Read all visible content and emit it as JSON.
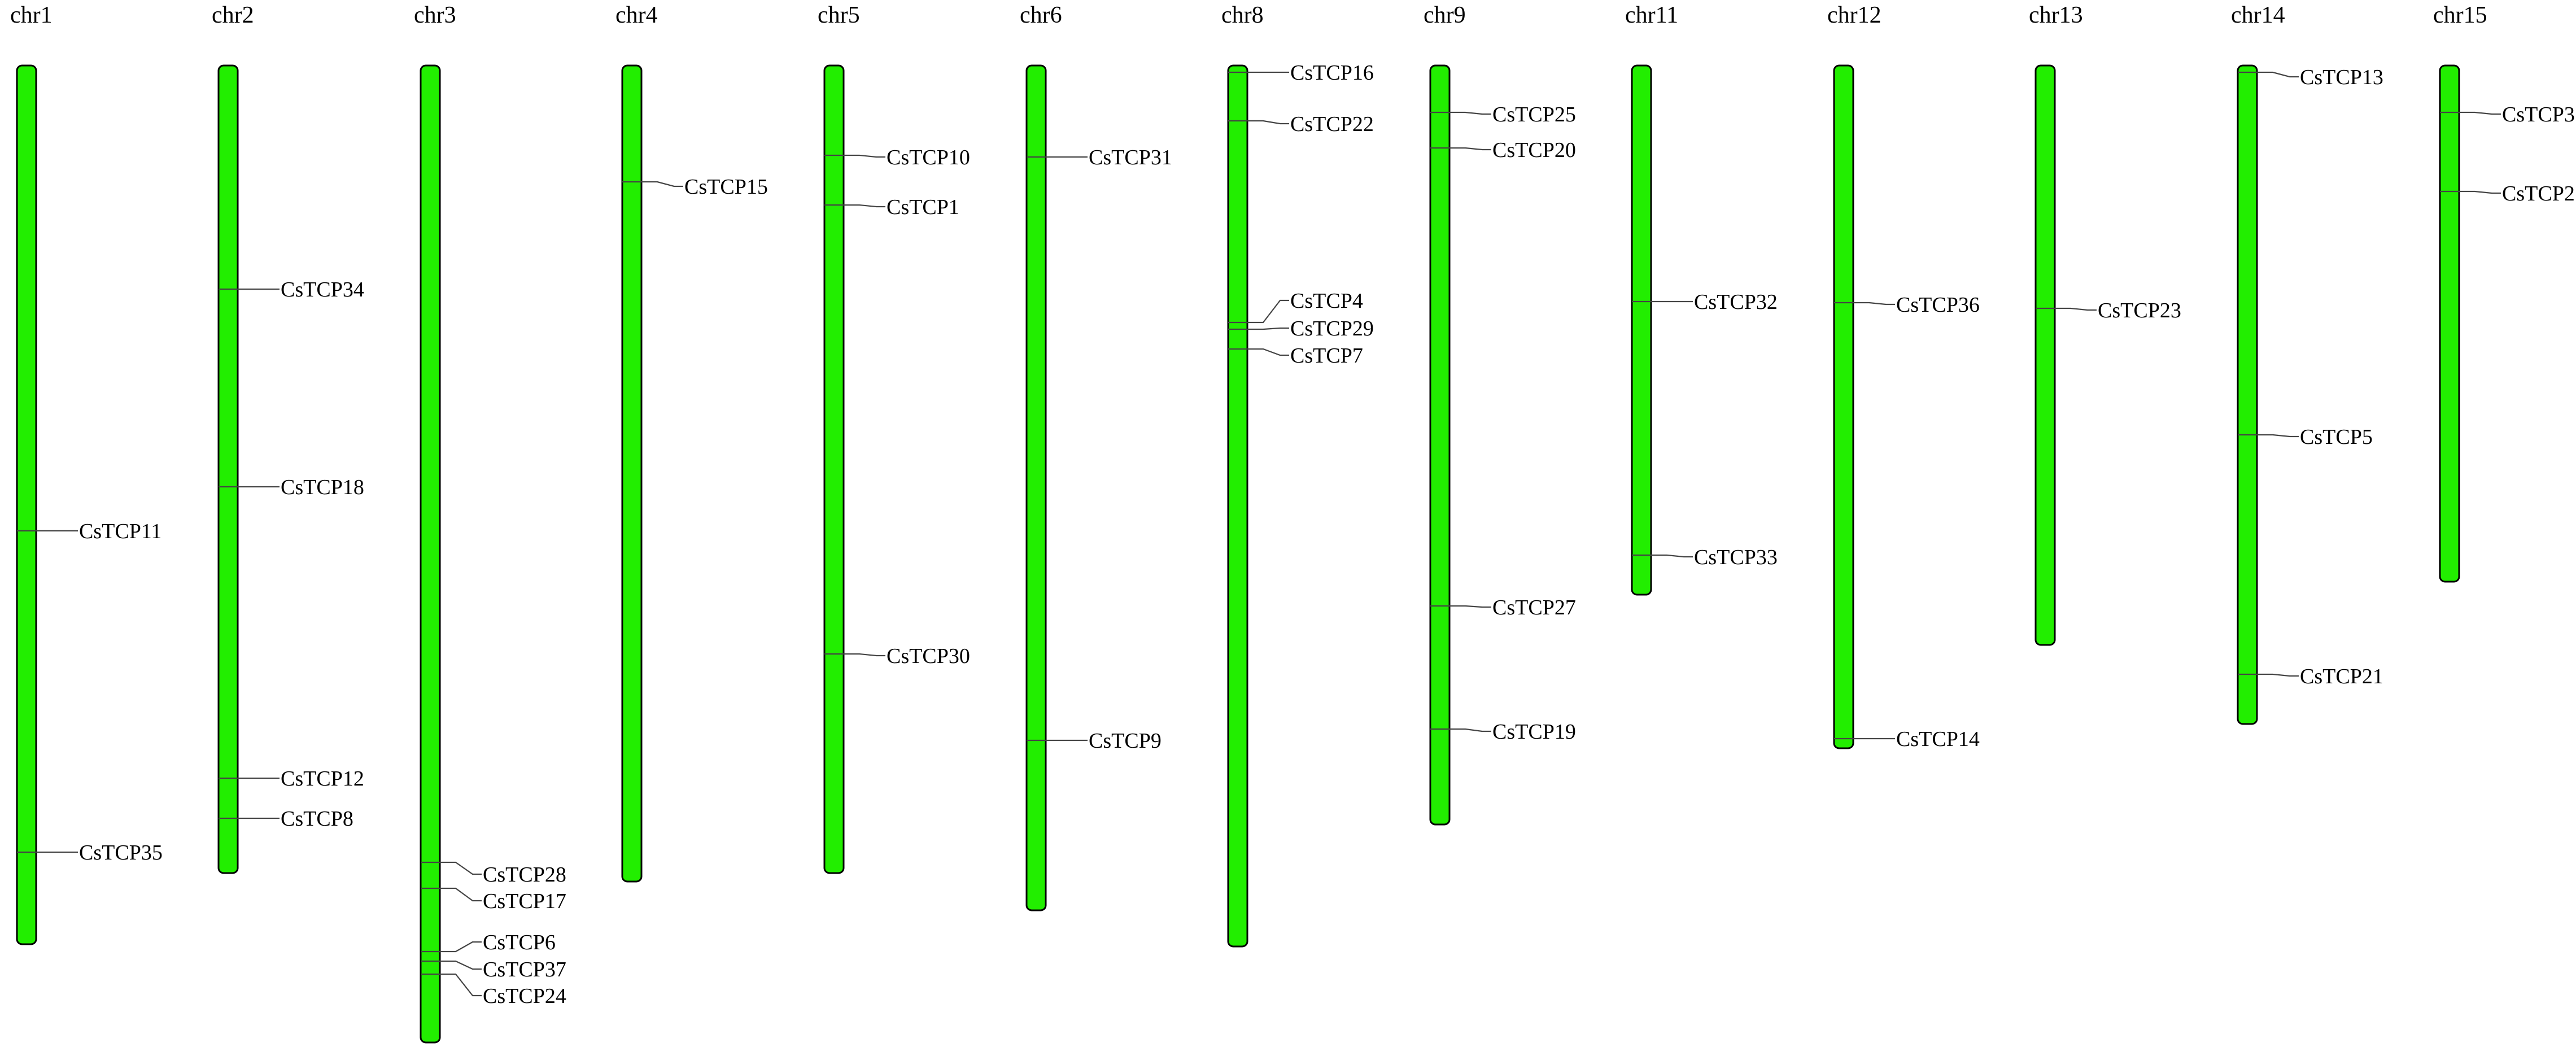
{
  "colors": {
    "chromosome_fill": "#22ee00",
    "outline": "#000000",
    "connector": "#444444"
  },
  "chromosomes": [
    {
      "name": "chr1",
      "genes": [
        {
          "label": "CsTCP11"
        },
        {
          "label": "CsTCP35"
        }
      ]
    },
    {
      "name": "chr2",
      "genes": [
        {
          "label": "CsTCP34"
        },
        {
          "label": "CsTCP18"
        },
        {
          "label": "CsTCP12"
        },
        {
          "label": "CsTCP8"
        }
      ]
    },
    {
      "name": "chr3",
      "genes": [
        {
          "label": "CsTCP28"
        },
        {
          "label": "CsTCP17"
        },
        {
          "label": "CsTCP6"
        },
        {
          "label": "CsTCP37"
        },
        {
          "label": "CsTCP24"
        }
      ]
    },
    {
      "name": "chr4",
      "genes": [
        {
          "label": "CsTCP15"
        }
      ]
    },
    {
      "name": "chr5",
      "genes": [
        {
          "label": "CsTCP10"
        },
        {
          "label": "CsTCP1"
        },
        {
          "label": "CsTCP30"
        }
      ]
    },
    {
      "name": "chr6",
      "genes": [
        {
          "label": "CsTCP31"
        },
        {
          "label": "CsTCP9"
        }
      ]
    },
    {
      "name": "chr8",
      "genes": [
        {
          "label": "CsTCP16"
        },
        {
          "label": "CsTCP22"
        },
        {
          "label": "CsTCP4"
        },
        {
          "label": "CsTCP29"
        },
        {
          "label": "CsTCP7"
        }
      ]
    },
    {
      "name": "chr9",
      "genes": [
        {
          "label": "CsTCP25"
        },
        {
          "label": "CsTCP20"
        },
        {
          "label": "CsTCP27"
        },
        {
          "label": "CsTCP19"
        }
      ]
    },
    {
      "name": "chr11",
      "genes": [
        {
          "label": "CsTCP32"
        },
        {
          "label": "CsTCP33"
        }
      ]
    },
    {
      "name": "chr12",
      "genes": [
        {
          "label": "CsTCP36"
        },
        {
          "label": "CsTCP14"
        }
      ]
    },
    {
      "name": "chr13",
      "genes": [
        {
          "label": "CsTCP23"
        }
      ]
    },
    {
      "name": "chr14",
      "genes": [
        {
          "label": "CsTCP13"
        },
        {
          "label": "CsTCP5"
        },
        {
          "label": "CsTCP21"
        }
      ]
    },
    {
      "name": "chr15",
      "genes": [
        {
          "label": "CsTCP3"
        },
        {
          "label": "CsTCP2"
        }
      ]
    }
  ]
}
